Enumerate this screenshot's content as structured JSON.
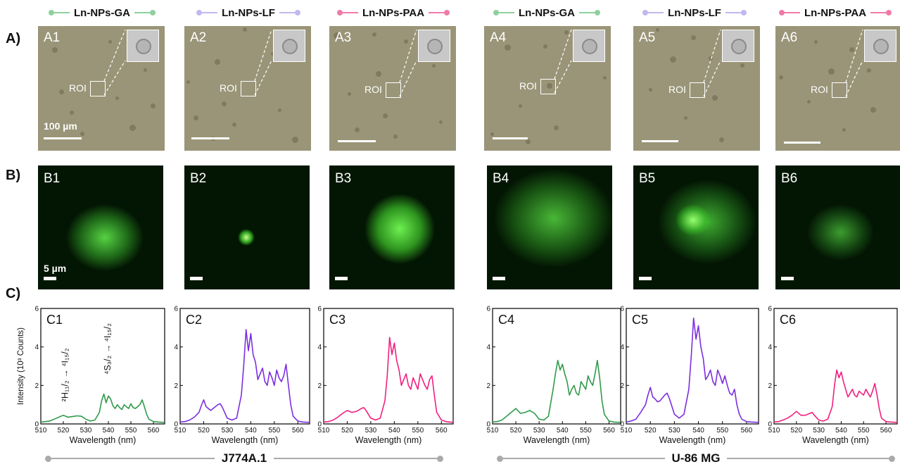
{
  "headers": [
    {
      "label": "Ln-NPs-GA",
      "color": "#8fd19e"
    },
    {
      "label": "Ln-NPs-LF",
      "color": "#c3b7f0"
    },
    {
      "label": "Ln-NPs-PAA",
      "color": "#f07aa8"
    },
    {
      "label": "Ln-NPs-GA",
      "color": "#8fd19e"
    },
    {
      "label": "Ln-NPs-LF",
      "color": "#c3b7f0"
    },
    {
      "label": "Ln-NPs-PAA",
      "color": "#f07aa8"
    }
  ],
  "row_labels": {
    "a": "A)",
    "b": "B)",
    "c": "C)"
  },
  "brightfield": {
    "panels": [
      "A1",
      "A2",
      "A3",
      "A4",
      "A5",
      "A6"
    ],
    "roi_label": "ROI",
    "scale_label": "100 µm"
  },
  "fluorescence": {
    "panels": [
      "B1",
      "B2",
      "B3",
      "B4",
      "B5",
      "B6"
    ],
    "scale_label": "5 µm"
  },
  "cell_lines": [
    "J774A.1",
    "U-86 MG"
  ],
  "chart_data": [
    {
      "type": "line",
      "panel": "C1",
      "color": "#2f9a4a",
      "xlabel": "Wavelength (nm)",
      "ylabel": "Intensity (10³ Counts)",
      "xlim": [
        510,
        565
      ],
      "ylim": [
        0,
        6
      ],
      "xticks": [
        510,
        520,
        530,
        540,
        550,
        560
      ],
      "yticks": [
        0,
        2,
        4,
        6
      ],
      "annotations": [
        "²H₁₁/₂ → ⁴I₁₅/₂",
        "⁴S₃/₂ → ⁴I₁₅/₂"
      ],
      "x": [
        510,
        512,
        514,
        516,
        518,
        520,
        522,
        524,
        526,
        528,
        530,
        532,
        534,
        536,
        537,
        538,
        539,
        540,
        541,
        542,
        543,
        544,
        545,
        546,
        547,
        548,
        549,
        550,
        551,
        552,
        553,
        554,
        555,
        556,
        557,
        558,
        560,
        562,
        565
      ],
      "y": [
        0.1,
        0.12,
        0.15,
        0.25,
        0.35,
        0.45,
        0.35,
        0.38,
        0.42,
        0.4,
        0.25,
        0.15,
        0.2,
        0.6,
        1.2,
        1.55,
        1.1,
        1.45,
        1.3,
        0.95,
        0.8,
        1.0,
        0.85,
        0.75,
        1.0,
        0.9,
        0.8,
        1.05,
        0.85,
        0.8,
        0.9,
        1.0,
        1.25,
        0.9,
        0.5,
        0.25,
        0.12,
        0.1,
        0.08
      ]
    },
    {
      "type": "line",
      "panel": "C2",
      "color": "#7b2ee0",
      "xlabel": "Wavelength (nm)",
      "xlim": [
        510,
        565
      ],
      "ylim": [
        0,
        6
      ],
      "xticks": [
        510,
        520,
        530,
        540,
        550,
        560
      ],
      "yticks": [
        0,
        2,
        4,
        6
      ],
      "x": [
        510,
        512,
        514,
        516,
        518,
        519,
        520,
        521,
        522,
        523,
        524,
        526,
        527,
        528,
        530,
        532,
        534,
        536,
        537,
        538,
        539,
        540,
        541,
        542,
        543,
        544,
        545,
        546,
        547,
        548,
        549,
        550,
        551,
        552,
        553,
        554,
        555,
        556,
        557,
        558,
        560,
        562,
        565
      ],
      "y": [
        0.1,
        0.12,
        0.2,
        0.35,
        0.6,
        0.95,
        1.25,
        0.9,
        0.8,
        0.7,
        0.8,
        1.0,
        1.05,
        0.85,
        0.3,
        0.2,
        0.3,
        1.5,
        3.0,
        4.9,
        3.8,
        4.7,
        3.6,
        3.2,
        2.3,
        2.6,
        2.9,
        2.2,
        2.0,
        2.7,
        2.4,
        2.0,
        2.8,
        2.4,
        2.2,
        2.5,
        3.1,
        2.0,
        1.0,
        0.4,
        0.15,
        0.1,
        0.08
      ]
    },
    {
      "type": "line",
      "panel": "C3",
      "color": "#f0207f",
      "xlabel": "Wavelength (nm)",
      "xlim": [
        510,
        565
      ],
      "ylim": [
        0,
        6
      ],
      "xticks": [
        510,
        520,
        530,
        540,
        550,
        560
      ],
      "yticks": [
        0,
        2,
        4,
        6
      ],
      "x": [
        510,
        512,
        514,
        516,
        518,
        520,
        522,
        524,
        526,
        527,
        528,
        530,
        532,
        534,
        536,
        537,
        538,
        539,
        540,
        541,
        542,
        543,
        544,
        545,
        546,
        547,
        548,
        549,
        550,
        551,
        552,
        553,
        554,
        555,
        556,
        557,
        558,
        560,
        562,
        565
      ],
      "y": [
        0.1,
        0.12,
        0.2,
        0.35,
        0.55,
        0.7,
        0.6,
        0.65,
        0.8,
        0.85,
        0.7,
        0.3,
        0.2,
        0.3,
        1.2,
        2.5,
        4.5,
        3.6,
        4.2,
        3.3,
        2.8,
        2.0,
        2.3,
        2.6,
        2.0,
        1.8,
        2.4,
        2.1,
        1.8,
        2.6,
        2.3,
        2.0,
        1.8,
        2.3,
        2.5,
        1.5,
        0.6,
        0.2,
        0.12,
        0.08
      ]
    },
    {
      "type": "line",
      "panel": "C4",
      "color": "#2f9a4a",
      "xlabel": "Wavelength (nm)",
      "xlim": [
        510,
        565
      ],
      "ylim": [
        0,
        6
      ],
      "xticks": [
        510,
        520,
        530,
        540,
        550,
        560
      ],
      "yticks": [
        0,
        2,
        4,
        6
      ],
      "x": [
        510,
        512,
        514,
        516,
        518,
        520,
        522,
        524,
        526,
        528,
        530,
        532,
        534,
        536,
        537,
        538,
        539,
        540,
        541,
        542,
        543,
        544,
        545,
        546,
        547,
        548,
        549,
        550,
        551,
        552,
        553,
        554,
        555,
        556,
        557,
        558,
        560,
        562,
        565
      ],
      "y": [
        0.1,
        0.12,
        0.2,
        0.4,
        0.6,
        0.8,
        0.55,
        0.6,
        0.7,
        0.55,
        0.25,
        0.2,
        0.4,
        1.8,
        2.6,
        3.3,
        2.8,
        3.1,
        2.6,
        2.2,
        1.5,
        1.8,
        2.0,
        1.6,
        1.5,
        2.2,
        2.0,
        1.8,
        2.5,
        2.2,
        2.0,
        2.6,
        3.3,
        2.4,
        1.2,
        0.5,
        0.15,
        0.1,
        0.08
      ]
    },
    {
      "type": "line",
      "panel": "C5",
      "color": "#7b2ee0",
      "xlabel": "Wavelength (nm)",
      "xlim": [
        510,
        565
      ],
      "ylim": [
        0,
        6
      ],
      "xticks": [
        510,
        520,
        530,
        540,
        550,
        560
      ],
      "yticks": [
        0,
        2,
        4,
        6
      ],
      "x": [
        510,
        512,
        514,
        516,
        518,
        519,
        520,
        521,
        522,
        523,
        524,
        526,
        527,
        528,
        530,
        532,
        534,
        536,
        537,
        538,
        539,
        540,
        541,
        542,
        543,
        544,
        545,
        546,
        547,
        548,
        549,
        550,
        551,
        552,
        553,
        554,
        555,
        556,
        557,
        558,
        560,
        562,
        565
      ],
      "y": [
        0.1,
        0.15,
        0.25,
        0.6,
        1.0,
        1.5,
        1.9,
        1.4,
        1.3,
        1.15,
        1.2,
        1.5,
        1.6,
        1.3,
        0.5,
        0.3,
        0.5,
        1.8,
        3.5,
        5.5,
        4.4,
        5.1,
        4.0,
        3.4,
        2.3,
        2.5,
        2.8,
        2.2,
        2.0,
        2.8,
        2.5,
        2.1,
        2.5,
        2.0,
        1.6,
        1.5,
        1.8,
        1.0,
        0.5,
        0.25,
        0.12,
        0.1,
        0.08
      ]
    },
    {
      "type": "line",
      "panel": "C6",
      "color": "#f0207f",
      "xlabel": "Wavelength (nm)",
      "xlim": [
        510,
        565
      ],
      "ylim": [
        0,
        6
      ],
      "xticks": [
        510,
        520,
        530,
        540,
        550,
        560
      ],
      "yticks": [
        0,
        2,
        4,
        6
      ],
      "x": [
        510,
        512,
        514,
        516,
        518,
        520,
        522,
        524,
        526,
        527,
        528,
        530,
        532,
        534,
        536,
        537,
        538,
        539,
        540,
        541,
        542,
        543,
        544,
        545,
        546,
        547,
        548,
        549,
        550,
        551,
        552,
        553,
        554,
        555,
        556,
        557,
        558,
        560,
        562,
        565
      ],
      "y": [
        0.1,
        0.12,
        0.2,
        0.3,
        0.45,
        0.65,
        0.45,
        0.45,
        0.55,
        0.6,
        0.45,
        0.2,
        0.15,
        0.25,
        0.9,
        2.0,
        2.8,
        2.4,
        2.7,
        2.2,
        1.8,
        1.4,
        1.6,
        1.8,
        1.5,
        1.4,
        1.7,
        1.6,
        1.5,
        1.8,
        1.6,
        1.4,
        1.7,
        2.1,
        1.5,
        0.8,
        0.3,
        0.12,
        0.1,
        0.08
      ]
    }
  ]
}
